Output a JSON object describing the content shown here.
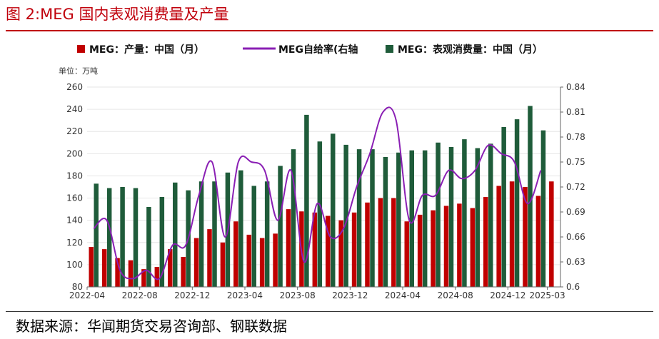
{
  "header": {
    "title": "图 2:MEG 国内表观消费量及产量"
  },
  "footer": {
    "source": "数据来源：华闻期货交易咨询部、钢联数据"
  },
  "colors": {
    "accent": "#c0000b",
    "production": "#c00000",
    "consumption": "#1f5c3a",
    "ratio": "#8a1fb4"
  },
  "chart_data": {
    "type": "bar",
    "unit_label": "单位：万吨",
    "legend_position": "top",
    "x_tick_labels": [
      "2022-04",
      "2022-08",
      "2022-12",
      "2023-04",
      "2023-08",
      "2023-12",
      "2024-04",
      "2024-08",
      "2024-12",
      "2025-03"
    ],
    "categories": [
      "2022-04",
      "2022-05",
      "2022-06",
      "2022-07",
      "2022-08",
      "2022-09",
      "2022-10",
      "2022-11",
      "2022-12",
      "2023-01",
      "2023-02",
      "2023-03",
      "2023-04",
      "2023-05",
      "2023-06",
      "2023-07",
      "2023-08",
      "2023-09",
      "2023-10",
      "2023-11",
      "2023-12",
      "2024-01",
      "2024-02",
      "2024-03",
      "2024-04",
      "2024-05",
      "2024-06",
      "2024-07",
      "2024-08",
      "2024-09",
      "2024-10",
      "2024-11",
      "2024-12",
      "2025-01",
      "2025-02",
      "2025-03"
    ],
    "y_left": {
      "min": 80,
      "max": 260,
      "ticks": [
        80,
        100,
        120,
        140,
        160,
        180,
        200,
        220,
        240,
        260
      ]
    },
    "y_right": {
      "min": 0.6,
      "max": 0.84,
      "ticks": [
        "0.6",
        "0.63",
        "0.66",
        "0.69",
        "0.72",
        "0.75",
        "0.78",
        "0.81",
        "0.84"
      ]
    },
    "series": [
      {
        "name": "MEG：产量：中国（月）",
        "type": "bar",
        "axis": "left",
        "values": [
          116,
          114,
          106,
          104,
          96,
          98,
          114,
          107,
          124,
          132,
          120,
          139,
          127,
          124,
          128,
          150,
          148,
          147,
          144,
          140,
          147,
          156,
          160,
          160,
          139,
          145,
          149,
          153,
          155,
          151,
          161,
          171,
          175,
          170,
          162,
          175
        ]
      },
      {
        "name": "MEG：表观消费量：中国（月）",
        "type": "bar",
        "axis": "left",
        "values": [
          173,
          169,
          170,
          169,
          152,
          161,
          174,
          167,
          175,
          175,
          183,
          185,
          171,
          175,
          189,
          204,
          235,
          211,
          218,
          208,
          204,
          204,
          197,
          201,
          203,
          203,
          210,
          206,
          213,
          205,
          209,
          224,
          231,
          243,
          221,
          null
        ]
      },
      {
        "name": "MEG自给率(右轴",
        "type": "line",
        "axis": "right",
        "values": [
          0.67,
          0.68,
          0.62,
          0.61,
          0.62,
          0.61,
          0.65,
          0.65,
          0.71,
          0.75,
          0.66,
          0.75,
          0.75,
          0.74,
          0.68,
          0.74,
          0.63,
          0.7,
          0.66,
          0.67,
          0.72,
          0.76,
          0.81,
          0.8,
          0.68,
          0.71,
          0.71,
          0.74,
          0.73,
          0.74,
          0.77,
          0.76,
          0.75,
          0.7,
          0.74,
          null
        ]
      }
    ]
  }
}
